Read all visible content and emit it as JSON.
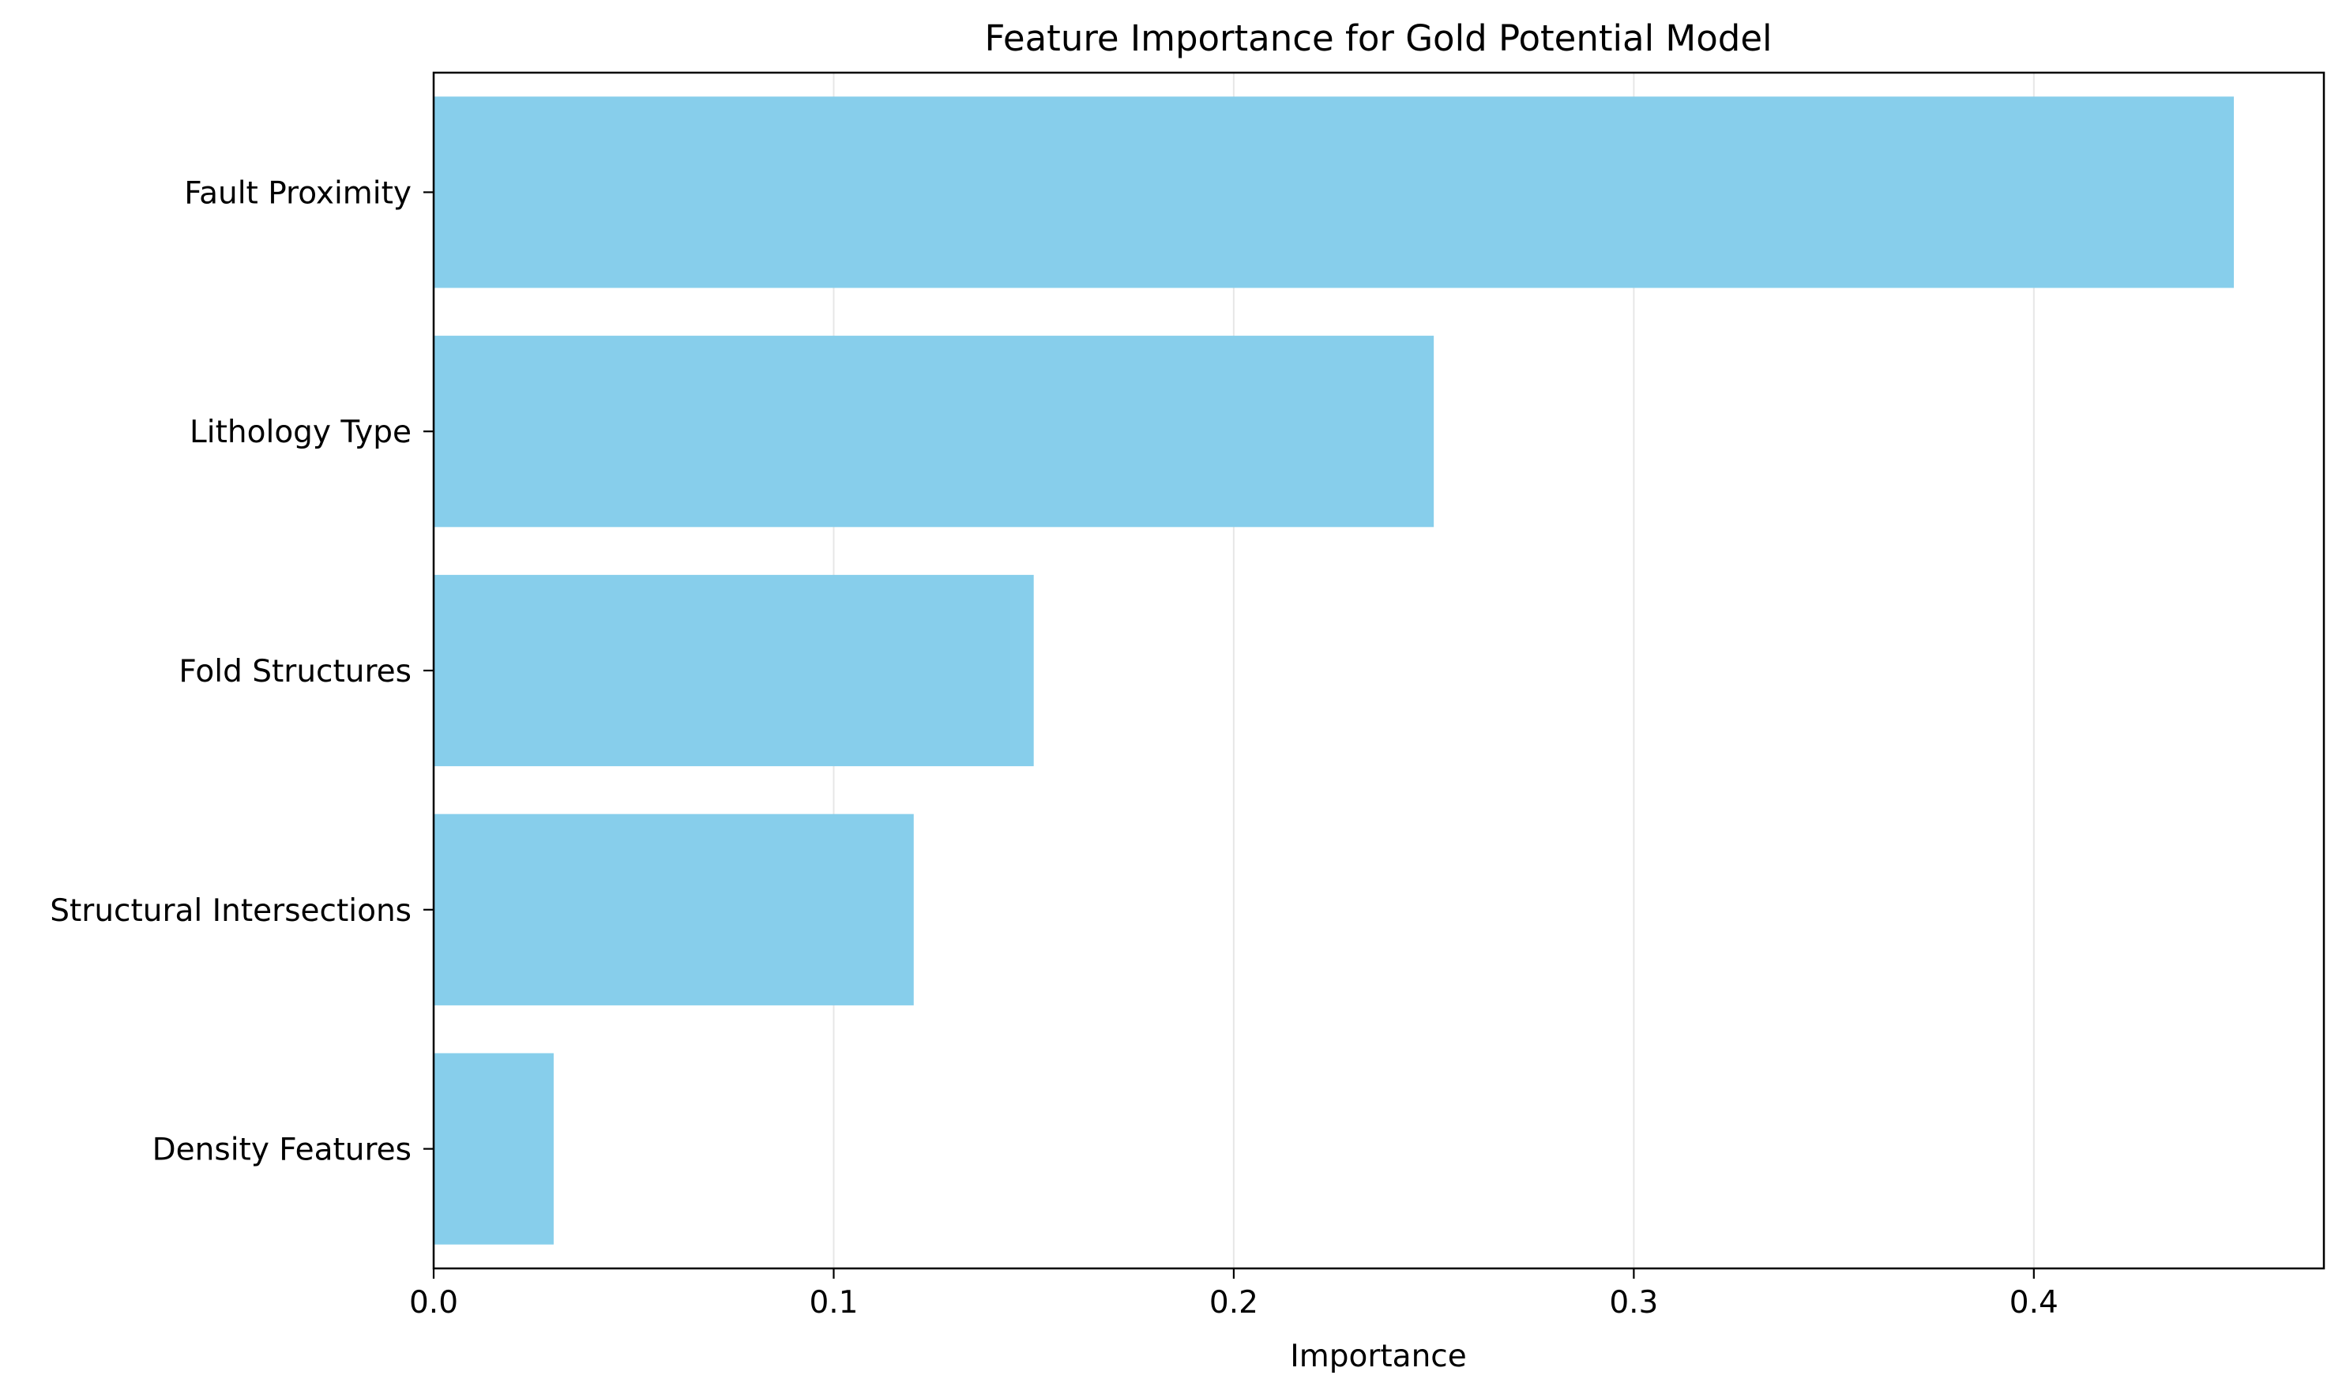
{
  "chart_data": {
    "type": "bar",
    "orientation": "horizontal",
    "title": "Feature Importance for Gold Potential Model",
    "xlabel": "Importance",
    "ylabel": "",
    "categories": [
      "Fault Proximity",
      "Lithology Type",
      "Fold Structures",
      "Structural Intersections",
      "Density Features"
    ],
    "values": [
      0.45,
      0.25,
      0.15,
      0.12,
      0.03
    ],
    "xlim": [
      0,
      0.4725
    ],
    "xticks": [
      0.0,
      0.1,
      0.2,
      0.3,
      0.4
    ],
    "xtick_labels": [
      "0.0",
      "0.1",
      "0.2",
      "0.3",
      "0.4"
    ],
    "grid": {
      "x": true,
      "y": false
    },
    "bar_color": "#87CEEB",
    "grid_color": "#b0b0b0"
  }
}
